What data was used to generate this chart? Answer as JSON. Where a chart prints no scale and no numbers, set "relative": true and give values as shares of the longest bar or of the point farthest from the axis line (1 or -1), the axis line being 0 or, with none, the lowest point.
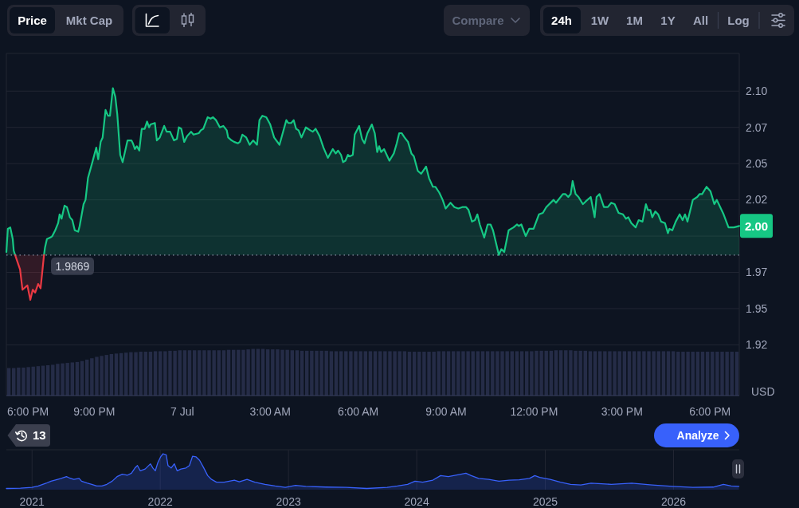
{
  "chart_data": [
    {
      "type": "other",
      "annotations": [
        "Price",
        "Mkt Cap",
        "Compare",
        "24h",
        "1W",
        "1M",
        "1Y",
        "All",
        "Log"
      ]
    },
    {
      "type": "area",
      "ylabel": "USD",
      "xlim": [
        "2026-07-06T18:00",
        "2026-07-07T19:00"
      ],
      "ylim": [
        1.89,
        2.126
      ],
      "xticks": [
        {
          "value": "2026-07-06T18:00",
          "label": "6:00 PM"
        },
        {
          "value": "2026-07-06T21:00",
          "label": "9:00 PM"
        },
        {
          "value": "2026-07-07T00:00",
          "label": "7 Jul"
        },
        {
          "value": "2026-07-07T03:00",
          "label": "3:00 AM"
        },
        {
          "value": "2026-07-07T06:00",
          "label": "6:00 AM"
        },
        {
          "value": "2026-07-07T09:00",
          "label": "9:00 AM"
        },
        {
          "value": "2026-07-07T12:00",
          "label": "12:00 PM"
        },
        {
          "value": "2026-07-07T15:00",
          "label": "3:00 PM"
        },
        {
          "value": "2026-07-07T18:00",
          "label": "6:00 PM"
        }
      ],
      "yticks": [
        {
          "value": 1.925,
          "label": "1.92"
        },
        1.95,
        {
          "value": 1.975,
          "label": "1.97"
        },
        {
          "value": 2.0,
          "label": null
        },
        {
          "value": 2.025,
          "label": "2.02"
        },
        2.05,
        {
          "value": 2.075,
          "label": "2.07"
        },
        {
          "value": 2.1,
          "label": "2.10"
        }
      ],
      "grid": "y",
      "x": [
        "2026-07-06T18:00",
        "2026-07-06T18:03",
        "2026-07-06T18:08",
        "2026-07-06T18:13",
        "2026-07-06T18:15",
        "2026-07-06T18:18",
        "2026-07-06T18:28",
        "2026-07-06T18:33",
        "2026-07-06T18:43",
        "2026-07-06T18:49",
        "2026-07-06T18:54",
        "2026-07-06T18:59",
        "2026-07-06T19:05",
        "2026-07-06T19:10",
        "2026-07-06T19:14",
        "2026-07-06T19:17",
        "2026-07-06T19:19",
        "2026-07-06T19:23",
        "2026-07-06T19:30",
        "2026-07-06T19:34",
        "2026-07-06T19:40",
        "2026-07-06T19:46",
        "2026-07-06T19:49",
        "2026-07-06T19:53",
        "2026-07-06T19:59",
        "2026-07-06T20:04",
        "2026-07-06T20:10",
        "2026-07-06T20:15",
        "2026-07-06T20:20",
        "2026-07-06T20:27",
        "2026-07-06T20:30",
        "2026-07-06T20:38",
        "2026-07-06T20:42",
        "2026-07-06T20:47",
        "2026-07-06T20:56",
        "2026-07-06T21:04",
        "2026-07-06T21:08",
        "2026-07-06T21:13",
        "2026-07-06T21:17",
        "2026-07-06T21:23",
        "2026-07-06T21:28",
        "2026-07-06T21:32",
        "2026-07-06T21:38",
        "2026-07-06T21:43",
        "2026-07-06T21:47",
        "2026-07-06T21:53",
        "2026-07-06T21:58",
        "2026-07-06T22:08",
        "2026-07-06T22:16",
        "2026-07-06T22:19",
        "2026-07-06T22:23",
        "2026-07-06T22:27",
        "2026-07-06T22:32",
        "2026-07-06T22:37",
        "2026-07-06T22:43",
        "2026-07-06T22:48",
        "2026-07-06T22:52",
        "2026-07-06T22:55",
        "2026-07-06T23:04",
        "2026-07-06T23:08",
        "2026-07-06T23:14",
        "2026-07-06T23:23",
        "2026-07-06T23:28",
        "2026-07-06T23:35",
        "2026-07-06T23:43",
        "2026-07-06T23:49",
        "2026-07-06T23:53",
        "2026-07-06T23:58",
        "2026-07-07T00:04",
        "2026-07-07T00:10",
        "2026-07-07T00:18",
        "2026-07-07T00:23",
        "2026-07-07T00:34",
        "2026-07-07T00:38",
        "2026-07-07T00:43",
        "2026-07-07T00:52",
        "2026-07-07T00:58",
        "2026-07-07T01:03",
        "2026-07-07T01:09",
        "2026-07-07T01:17",
        "2026-07-07T01:24",
        "2026-07-07T01:31",
        "2026-07-07T01:34",
        "2026-07-07T01:41",
        "2026-07-07T01:46",
        "2026-07-07T01:54",
        "2026-07-07T01:58",
        "2026-07-07T02:03",
        "2026-07-07T02:11",
        "2026-07-07T02:18",
        "2026-07-07T02:25",
        "2026-07-07T02:33",
        "2026-07-07T02:38",
        "2026-07-07T02:44",
        "2026-07-07T02:52",
        "2026-07-07T03:00",
        "2026-07-07T03:08",
        "2026-07-07T03:19",
        "2026-07-07T03:33",
        "2026-07-07T03:37",
        "2026-07-07T03:43",
        "2026-07-07T03:48",
        "2026-07-07T03:53",
        "2026-07-07T03:58",
        "2026-07-07T04:04",
        "2026-07-07T04:13",
        "2026-07-07T04:22",
        "2026-07-07T04:27",
        "2026-07-07T04:33",
        "2026-07-07T04:41",
        "2026-07-07T04:49",
        "2026-07-07T04:58",
        "2026-07-07T05:08",
        "2026-07-07T05:14",
        "2026-07-07T05:19",
        "2026-07-07T05:25",
        "2026-07-07T05:29",
        "2026-07-07T05:34",
        "2026-07-07T05:39",
        "2026-07-07T05:43",
        "2026-07-07T05:49",
        "2026-07-07T05:53",
        "2026-07-07T06:02",
        "2026-07-07T06:08",
        "2026-07-07T06:13",
        "2026-07-07T06:19",
        "2026-07-07T06:28",
        "2026-07-07T06:34",
        "2026-07-07T06:39",
        "2026-07-07T06:43",
        "2026-07-07T06:47",
        "2026-07-07T06:53",
        "2026-07-07T07:04",
        "2026-07-07T07:13",
        "2026-07-07T07:19",
        "2026-07-07T07:24",
        "2026-07-07T07:29",
        "2026-07-07T07:35",
        "2026-07-07T07:42",
        "2026-07-07T07:49",
        "2026-07-07T07:54",
        "2026-07-07T08:02",
        "2026-07-07T08:09",
        "2026-07-07T08:19",
        "2026-07-07T08:25",
        "2026-07-07T08:33",
        "2026-07-07T08:38",
        "2026-07-07T08:46",
        "2026-07-07T08:53",
        "2026-07-07T08:59",
        "2026-07-07T09:09",
        "2026-07-07T09:17",
        "2026-07-07T09:25",
        "2026-07-07T09:33",
        "2026-07-07T09:41",
        "2026-07-07T09:46",
        "2026-07-07T09:53",
        "2026-07-07T09:59",
        "2026-07-07T10:04",
        "2026-07-07T10:09",
        "2026-07-07T10:18",
        "2026-07-07T10:25",
        "2026-07-07T10:31",
        "2026-07-07T10:36",
        "2026-07-07T10:48",
        "2026-07-07T10:53",
        "2026-07-07T10:59",
        "2026-07-07T11:08",
        "2026-07-07T11:18",
        "2026-07-07T11:25",
        "2026-07-07T11:29",
        "2026-07-07T11:34",
        "2026-07-07T11:43",
        "2026-07-07T11:50",
        "2026-07-07T11:59",
        "2026-07-07T12:10",
        "2026-07-07T12:18",
        "2026-07-07T12:25",
        "2026-07-07T12:40",
        "2026-07-07T12:45",
        "2026-07-07T12:59",
        "2026-07-07T13:04",
        "2026-07-07T13:10",
        "2026-07-07T13:15",
        "2026-07-07T13:19",
        "2026-07-07T13:25",
        "2026-07-07T13:31",
        "2026-07-07T13:40",
        "2026-07-07T13:46",
        "2026-07-07T13:56",
        "2026-07-07T14:04",
        "2026-07-07T14:08",
        "2026-07-07T14:14",
        "2026-07-07T14:23",
        "2026-07-07T14:31",
        "2026-07-07T14:38",
        "2026-07-07T14:45",
        "2026-07-07T14:53",
        "2026-07-07T15:02",
        "2026-07-07T15:08",
        "2026-07-07T15:13",
        "2026-07-07T15:19",
        "2026-07-07T15:28",
        "2026-07-07T15:34",
        "2026-07-07T15:42",
        "2026-07-07T15:49",
        "2026-07-07T15:53",
        "2026-07-07T15:58",
        "2026-07-07T16:02",
        "2026-07-07T16:08",
        "2026-07-07T16:14",
        "2026-07-07T16:20",
        "2026-07-07T16:28",
        "2026-07-07T16:34",
        "2026-07-07T16:37",
        "2026-07-07T16:43",
        "2026-07-07T16:50",
        "2026-07-07T16:58",
        "2026-07-07T17:04",
        "2026-07-07T17:09",
        "2026-07-07T17:14",
        "2026-07-07T17:25",
        "2026-07-07T17:34",
        "2026-07-07T17:39",
        "2026-07-07T17:44",
        "2026-07-07T17:53",
        "2026-07-07T18:01",
        "2026-07-07T18:09",
        "2026-07-07T18:14",
        "2026-07-07T18:28",
        "2026-07-07T18:38",
        "2026-07-07T18:49",
        "2026-07-07T19:00"
      ],
      "series": [
        {
          "color": "#16c784",
          "values": [
            1.989,
            2.005,
            2.006,
            1.998,
            1.99,
            1.9869,
            null,
            null,
            null,
            null,
            null,
            null,
            null,
            null,
            null,
            1.9869,
            1.992,
            1.998,
            1.999,
            2.0,
            2.004,
            2.009,
            2.015,
            2.012,
            2.021,
            2.02,
            2.013,
            2.011,
            2.004,
            2.003,
            2.007,
            2.022,
            2.025,
            2.04,
            2.051,
            2.061,
            2.053,
            2.065,
            2.068,
            2.087,
            2.083,
            2.083,
            2.102,
            2.096,
            2.084,
            2.056,
            2.051,
            2.066,
            2.066,
            2.064,
            2.06,
            2.062,
            2.059,
            2.074,
            2.074,
            2.079,
            2.075,
            2.077,
            2.078,
            2.066,
            2.068,
            2.076,
            2.072,
            2.072,
            2.066,
            2.067,
            2.075,
            2.074,
            2.065,
            2.069,
            2.072,
            2.07,
            2.071,
            2.073,
            2.074,
            2.082,
            2.081,
            2.082,
            2.08,
            2.075,
            2.076,
            2.073,
            2.068,
            2.066,
            2.065,
            2.064,
            2.065,
            2.07,
            2.068,
            2.063,
            2.066,
            2.063,
            2.08,
            2.083,
            2.082,
            2.077,
            2.068,
            2.063,
            2.08,
            2.078,
            2.078,
            2.08,
            2.074,
            2.073,
            2.068,
            2.075,
            2.073,
            2.072,
            2.074,
            2.069,
            2.061,
            2.054,
            2.06,
            2.057,
            2.059,
            2.056,
            2.051,
            2.052,
            2.056,
            2.055,
            2.056,
            2.07,
            2.076,
            2.067,
            2.064,
            2.071,
            2.077,
            2.071,
            2.058,
            2.062,
            2.058,
            2.06,
            2.052,
            2.057,
            2.064,
            2.071,
            2.071,
            2.068,
            2.065,
            2.057,
            2.055,
            2.045,
            2.043,
            2.048,
            2.04,
            2.034,
            2.034,
            2.03,
            2.025,
            2.019,
            2.023,
            2.02,
            2.019,
            2.02,
            2.02,
            2.018,
            2.01,
            2.011,
            2.015,
            2.008,
            1.999,
            2.008,
            2.008,
            2.004,
            1.987,
            1.991,
            1.989,
            2.004,
            2.006,
            2.008,
            2.007,
            2.008,
            2.0,
            2.005,
            2.005,
            2.015,
            2.016,
            2.02,
            2.025,
            2.023,
            2.029,
            2.029,
            2.027,
            2.029,
            2.038,
            2.029,
            2.027,
            2.022,
            2.024,
            2.027,
            2.013,
            2.027,
            2.029,
            2.02,
            2.02,
            2.023,
            2.022,
            2.016,
            2.015,
            2.012,
            2.013,
            2.009,
            2.006,
            2.011,
            2.01,
            2.022,
            2.018,
            2.018,
            2.013,
            2.017,
            2.015,
            2.01,
            2.009,
            2.002,
            2.005,
            2.004,
            2.01,
            2.015,
            2.011,
            2.015,
            2.01,
            2.025,
            2.027,
            2.029,
            2.029,
            2.034,
            2.031,
            2.022,
            2.025,
            2.015,
            2.006,
            2.006,
            2.007
          ]
        },
        {
          "color": "#ea3943",
          "x": [
            "2026-07-06T18:18",
            "2026-07-06T18:28",
            "2026-07-06T18:33",
            "2026-07-06T18:43",
            "2026-07-06T18:49",
            "2026-07-06T18:54",
            "2026-07-06T18:59",
            "2026-07-06T19:05",
            "2026-07-06T19:10",
            "2026-07-06T19:14",
            "2026-07-06T19:17"
          ],
          "values": [
            1.9869,
            1.977,
            1.963,
            1.966,
            1.956,
            1.963,
            1.961,
            1.967,
            1.964,
            1.977,
            1.9869
          ]
        }
      ],
      "ref_lines": [
        {
          "axis": "y",
          "value": 1.9869,
          "label": "1.9869",
          "line_style": "dotted",
          "color": "#8a91a5"
        }
      ],
      "annotations": [
        {
          "text": "2.00",
          "x": "2026-07-07T19:00",
          "y": 2.007
        }
      ]
    },
    {
      "type": "bar",
      "relative": true,
      "color": "#252c47",
      "categories": [
        null,
        null,
        null,
        null,
        null,
        null,
        null,
        null,
        null,
        null,
        null,
        null,
        null,
        null,
        null,
        null,
        null,
        null,
        null,
        null,
        null,
        null,
        null,
        null,
        null,
        null,
        null,
        null,
        null,
        null,
        null,
        null,
        null,
        null,
        null,
        null,
        null,
        null,
        null,
        null,
        null,
        null,
        null,
        null,
        null,
        null,
        null,
        null,
        null,
        null,
        null,
        null,
        null,
        null,
        null,
        null,
        null,
        null,
        null,
        null,
        null,
        null,
        null,
        null,
        null,
        null,
        null,
        null,
        null,
        null,
        null,
        null,
        null,
        null,
        null,
        null,
        null,
        null,
        null,
        null,
        null,
        null,
        null,
        null,
        null,
        null,
        null,
        null,
        null,
        null,
        null,
        null,
        null,
        null,
        null,
        null,
        null,
        null,
        null,
        null,
        null,
        null,
        null,
        null,
        null,
        null,
        null,
        null,
        null,
        null,
        null,
        null,
        null,
        null,
        null,
        null,
        null,
        null,
        null,
        null,
        null,
        null,
        null,
        null,
        null,
        null,
        null,
        null,
        null,
        null,
        null,
        null,
        null,
        null,
        null,
        null,
        null,
        null,
        null,
        null,
        null,
        null,
        null,
        null,
        null,
        null,
        null,
        null,
        null,
        null
      ],
      "values": [
        0.59,
        0.59,
        0.6,
        0.6,
        0.61,
        0.62,
        0.63,
        0.64,
        0.65,
        0.66,
        0.68,
        0.69,
        0.7,
        0.71,
        0.72,
        0.74,
        0.77,
        0.8,
        0.83,
        0.85,
        0.87,
        0.89,
        0.9,
        0.91,
        0.92,
        0.93,
        0.93,
        0.94,
        0.94,
        0.94,
        0.95,
        0.95,
        0.95,
        0.96,
        0.96,
        0.97,
        0.97,
        0.97,
        0.97,
        0.97,
        0.97,
        0.97,
        0.97,
        0.97,
        0.97,
        0.98,
        0.98,
        0.98,
        0.98,
        0.99,
        1,
        1,
        1,
        0.99,
        0.99,
        0.99,
        0.98,
        0.98,
        0.97,
        0.97,
        0.96,
        0.96,
        0.96,
        0.96,
        0.96,
        0.96,
        0.95,
        0.95,
        0.95,
        0.95,
        0.95,
        0.95,
        0.95,
        0.95,
        0.95,
        0.95,
        0.95,
        0.95,
        0.95,
        0.95,
        0.95,
        0.95,
        0.94,
        0.94,
        0.94,
        0.94,
        0.94,
        0.94,
        0.95,
        0.95,
        0.95,
        0.95,
        0.95,
        0.95,
        0.95,
        0.95,
        0.95,
        0.95,
        0.95,
        0.95,
        0.95,
        0.95,
        0.95,
        0.95,
        0.95,
        0.95,
        0.95,
        0.95,
        0.96,
        0.96,
        0.96,
        0.96,
        0.97,
        0.97,
        0.97,
        0.97,
        0.96,
        0.96,
        0.96,
        0.95,
        0.95,
        0.95,
        0.95,
        0.95,
        0.95,
        0.95,
        0.95,
        0.95,
        0.95,
        0.95,
        0.95,
        0.95,
        0.95,
        0.95,
        0.95,
        0.95,
        0.95,
        0.94,
        0.94,
        0.94,
        0.94,
        0.94,
        0.94,
        0.94,
        0.94,
        0.94,
        0.94,
        0.94,
        0.94,
        0.94
      ]
    },
    {
      "type": "other",
      "annotations": [
        "13",
        "Analyze"
      ]
    },
    {
      "type": "area",
      "relative": true,
      "color": "#3861fb",
      "grid": "x",
      "xlim": [
        "2020-10-20",
        "2026-07-07"
      ],
      "xticks": [
        "2021",
        "2022",
        "2023",
        "2024",
        "2025",
        "2026"
      ],
      "x": [
        "2020-10-20",
        "2020-11-29",
        "2021-01-01",
        "2021-01-19",
        "2021-02-10",
        "2021-02-24",
        "2021-03-11",
        "2021-03-25",
        "2021-04-09",
        "2021-04-16",
        "2021-04-30",
        "2021-05-15",
        "2021-05-22",
        "2021-06-06",
        "2021-06-20",
        "2021-07-04",
        "2021-07-19",
        "2021-08-02",
        "2021-08-17",
        "2021-08-31",
        "2021-09-15",
        "2021-09-29",
        "2021-10-11",
        "2021-10-21",
        "2021-10-28",
        "2021-11-05",
        "2021-11-19",
        "2021-12-04",
        "2021-12-11",
        "2021-12-18",
        "2021-12-25",
        "2022-01-02",
        "2022-01-09",
        "2022-01-18",
        "2022-01-23",
        "2022-02-01",
        "2022-02-10",
        "2022-02-18",
        "2022-03-01",
        "2022-03-15",
        "2022-03-25",
        "2022-04-03",
        "2022-04-13",
        "2022-04-23",
        "2022-05-05",
        "2022-05-16",
        "2022-05-27",
        "2022-06-10",
        "2022-07-02",
        "2022-07-31",
        "2022-08-14",
        "2022-09-05",
        "2022-09-27",
        "2022-10-26",
        "2022-11-24",
        "2022-12-23",
        "2023-01-21",
        "2023-02-19",
        "2023-04-18",
        "2023-06-15",
        "2023-08-12",
        "2023-10-09",
        "2023-11-07",
        "2023-12-06",
        "2023-12-27",
        "2024-01-18",
        "2024-02-16",
        "2024-03-09",
        "2024-03-31",
        "2024-04-21",
        "2024-05-06",
        "2024-05-20",
        "2024-06-04",
        "2024-06-25",
        "2024-07-24",
        "2024-08-22",
        "2024-09-20",
        "2024-10-19",
        "2024-11-17",
        "2024-12-02",
        "2024-12-16",
        "2025-01-15",
        "2025-02-13",
        "2025-03-14",
        "2025-04-12",
        "2025-05-11",
        "2025-07-08",
        "2025-09-04",
        "2025-11-01",
        "2025-12-29",
        "2026-02-25",
        "2026-04-24",
        "2026-05-23",
        "2026-06-14",
        "2026-07-06"
      ],
      "values": [
        0,
        0.01,
        0.03,
        0.07,
        0.15,
        0.21,
        0.25,
        0.29,
        0.34,
        0.31,
        0.26,
        0.29,
        0.21,
        0.16,
        0.12,
        0.07,
        0.07,
        0.12,
        0.21,
        0.34,
        0.41,
        0.38,
        0.44,
        0.59,
        0.66,
        0.51,
        0.56,
        0.71,
        0.59,
        0.51,
        0.74,
        0.91,
        1,
        0.97,
        0.66,
        0.59,
        0.71,
        0.51,
        0.56,
        0.59,
        0.66,
        0.93,
        0.91,
        0.81,
        0.59,
        0.37,
        0.26,
        0.18,
        0.18,
        0.24,
        0.19,
        0.26,
        0.18,
        0.12,
        0.07,
        0.03,
        0.09,
        0.06,
        0.04,
        0.03,
        0,
        0.03,
        0.07,
        0.12,
        0.21,
        0.18,
        0.24,
        0.37,
        0.34,
        0.38,
        0.41,
        0.44,
        0.37,
        0.29,
        0.26,
        0.21,
        0.24,
        0.25,
        0.29,
        0.37,
        0.32,
        0.26,
        0.18,
        0.12,
        0.1,
        0.15,
        0.12,
        0.15,
        0.1,
        0.06,
        0.03,
        0.04,
        0.12,
        0.07,
        0.06
      ]
    }
  ]
}
